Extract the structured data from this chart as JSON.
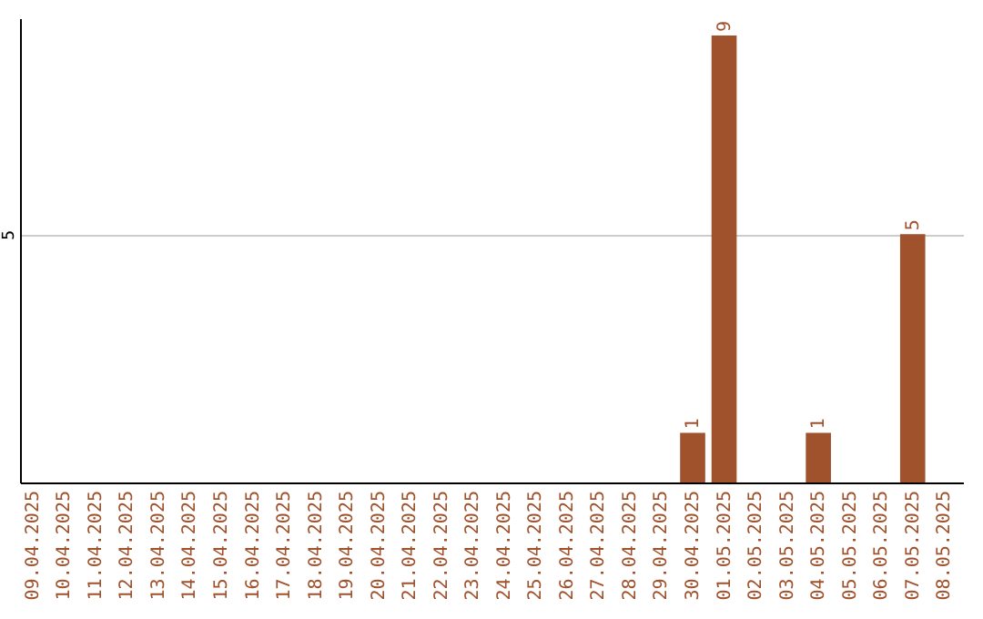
{
  "chart_data": {
    "type": "bar",
    "categories": [
      "09.04.2025",
      "10.04.2025",
      "11.04.2025",
      "12.04.2025",
      "13.04.2025",
      "14.04.2025",
      "15.04.2025",
      "16.04.2025",
      "17.04.2025",
      "18.04.2025",
      "19.04.2025",
      "20.04.2025",
      "21.04.2025",
      "22.04.2025",
      "23.04.2025",
      "24.04.2025",
      "25.04.2025",
      "26.04.2025",
      "27.04.2025",
      "28.04.2025",
      "29.04.2025",
      "30.04.2025",
      "01.05.2025",
      "02.05.2025",
      "03.05.2025",
      "04.05.2025",
      "05.05.2025",
      "06.05.2025",
      "07.05.2025",
      "08.05.2025"
    ],
    "values": [
      null,
      null,
      null,
      null,
      null,
      null,
      null,
      null,
      null,
      null,
      null,
      null,
      null,
      null,
      null,
      null,
      null,
      null,
      null,
      null,
      null,
      1,
      9,
      null,
      null,
      1,
      null,
      null,
      5,
      null
    ],
    "color": "#a0522d",
    "ylim": [
      0,
      9.35
    ],
    "yticks": [
      5
    ],
    "grid": "y",
    "data_labels": true
  }
}
